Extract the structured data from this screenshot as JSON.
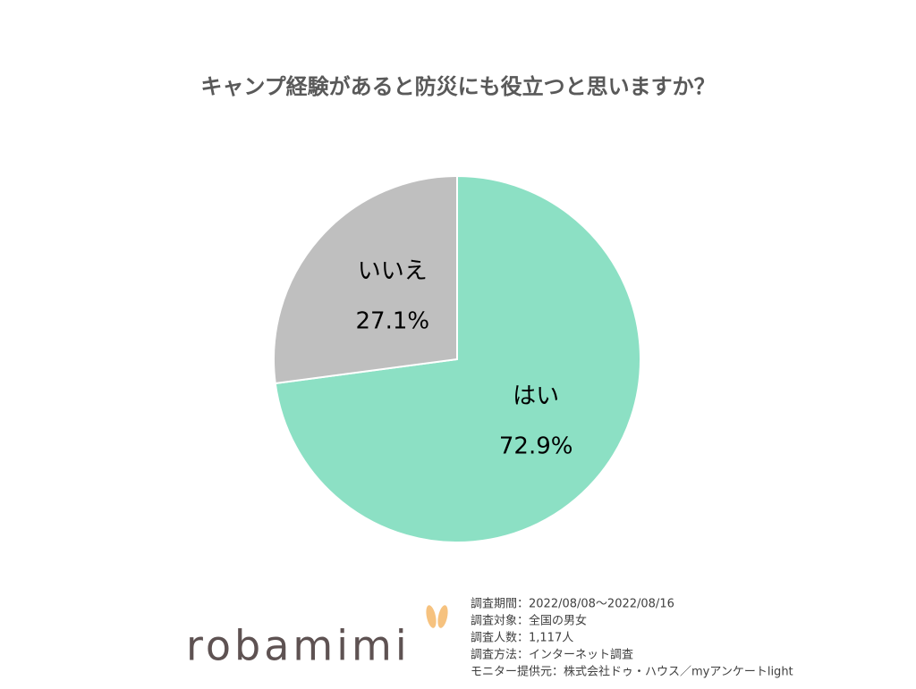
{
  "chart_data": {
    "type": "pie",
    "title": "キャンプ経験があると防災にも役立つと思いますか？",
    "categories": [
      "はい",
      "いいえ"
    ],
    "values": [
      72.9,
      27.1
    ],
    "value_labels": [
      "72.9%",
      "27.1%"
    ],
    "colors": [
      "#8ce0c4",
      "#bfbfbf"
    ],
    "notes": [
      "調査期間：2022/08/08～2022/08/16",
      "調査対象：全国の男女",
      "調査人数：1,117人",
      "調査方法：インターネット調査",
      "モニター提供元：株式会社ドゥ・ハウス／myアンケートlight"
    ],
    "logo": "robamimi"
  }
}
